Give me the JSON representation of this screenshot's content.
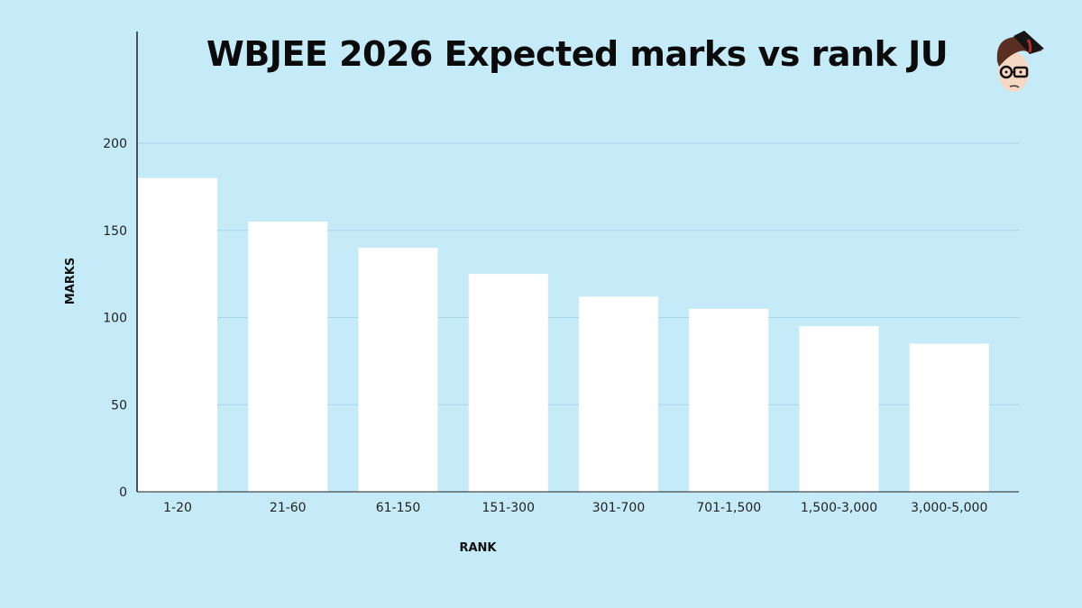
{
  "chart_data": {
    "type": "bar",
    "title": "WBJEE 2026 Expected marks vs rank JU",
    "xlabel": "RANK",
    "ylabel": "MARKS",
    "categories": [
      "1-20",
      "21-60",
      "61-150",
      "151-300",
      "301-700",
      "701-1,500",
      "1,500-3,000",
      "3,000-5,000"
    ],
    "values": [
      180,
      155,
      140,
      125,
      112,
      105,
      95,
      85
    ],
    "ylim": [
      0,
      200
    ],
    "yticks": [
      "0",
      "50",
      "100",
      "150",
      "200"
    ],
    "grid": true,
    "bar_color": "#ffffff",
    "background_color": "#c6ebf8"
  },
  "logo": {
    "icon": "cartoon-student-face-logo"
  }
}
